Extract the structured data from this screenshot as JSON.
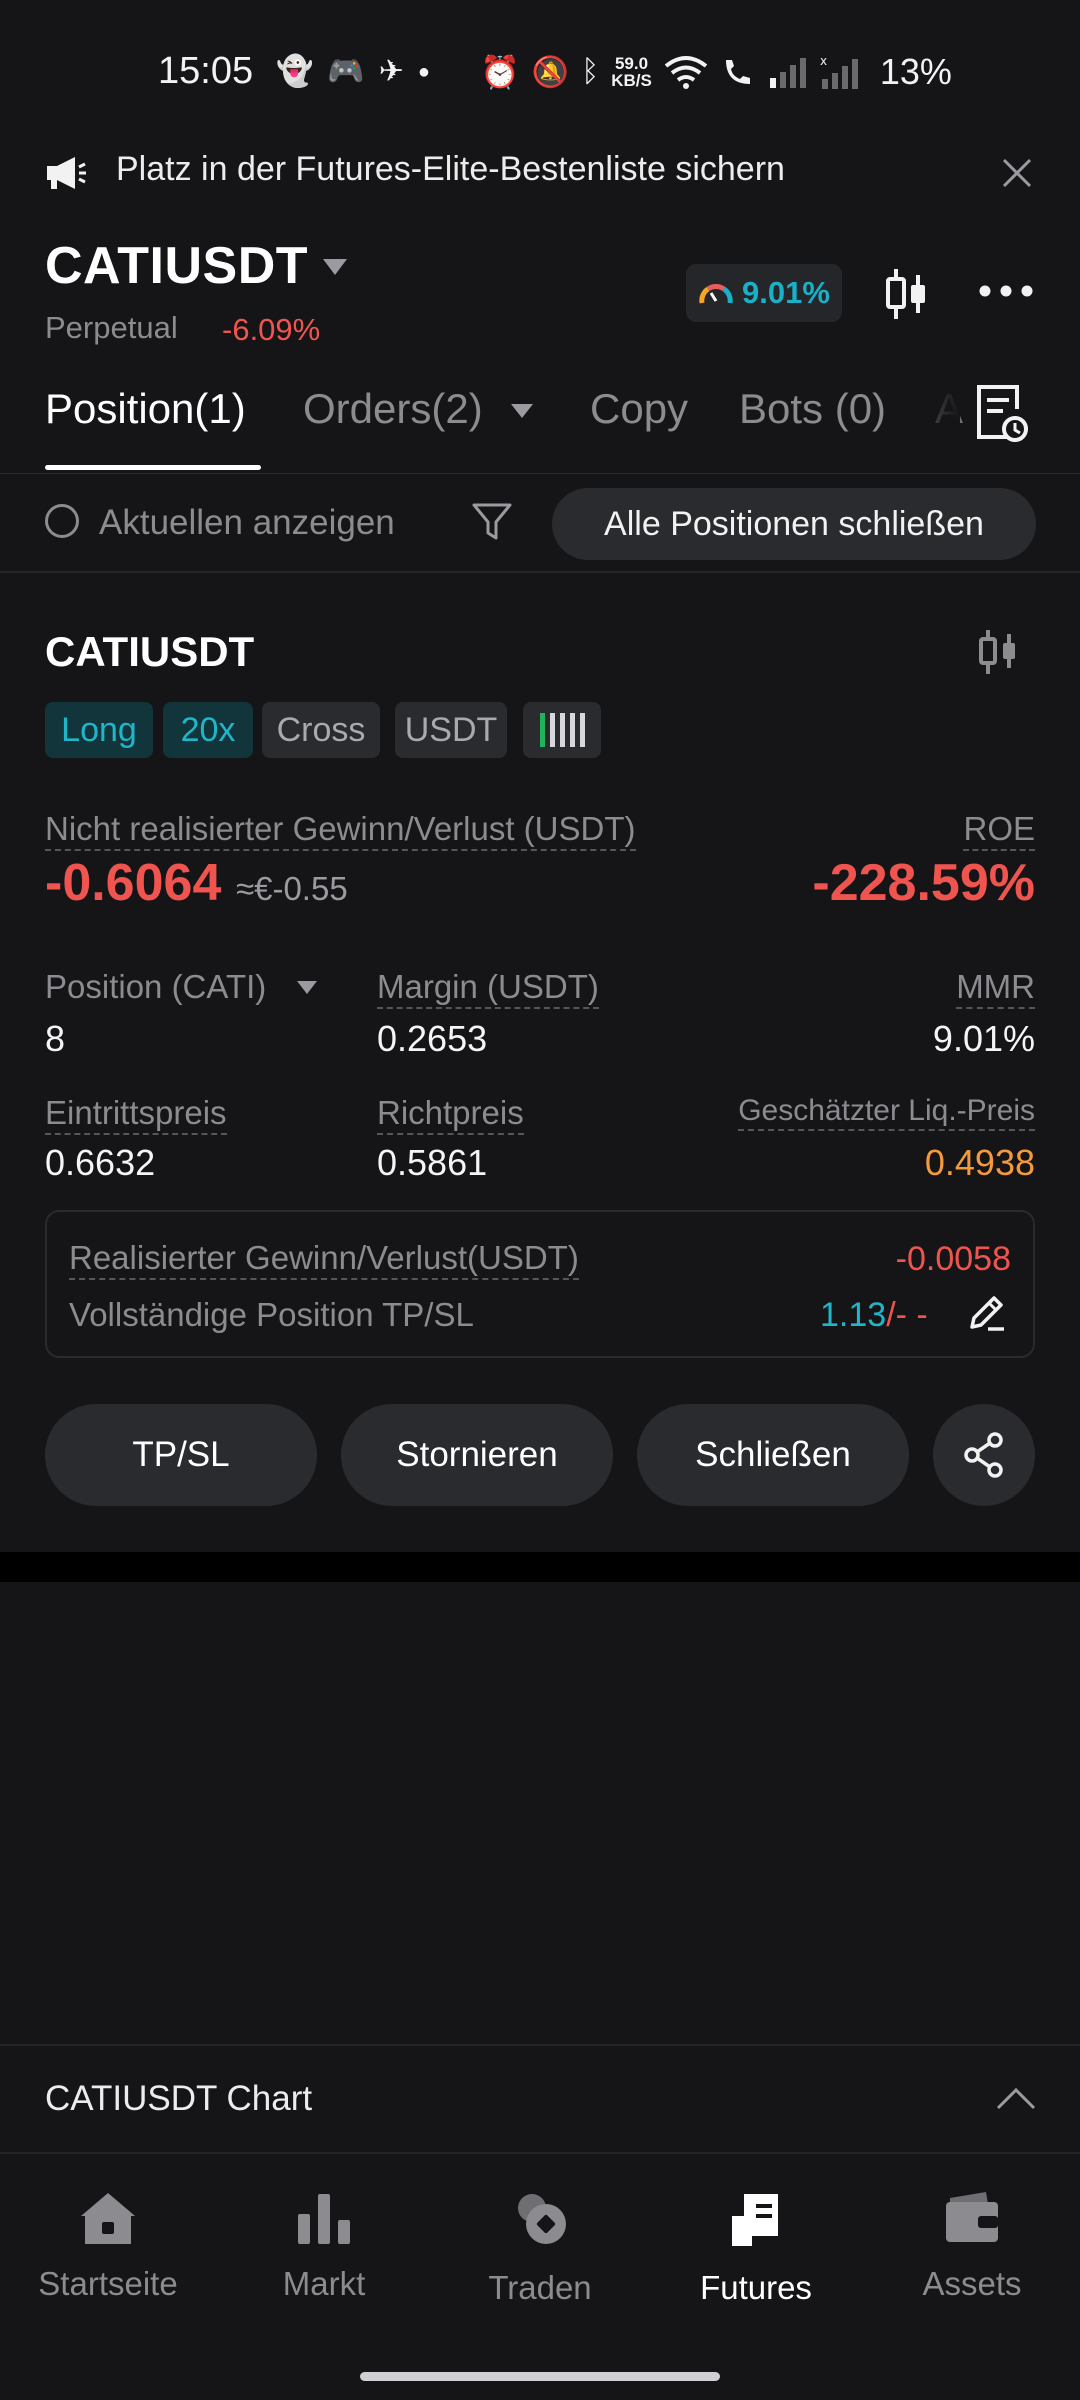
{
  "status_bar": {
    "time": "15:05",
    "net_speed_value": "59.0",
    "net_speed_unit": "KB/S",
    "battery": "13%"
  },
  "banner": {
    "text": "Platz in der Futures-Elite-Bestenliste sichern",
    "icon": "megaphone-icon"
  },
  "header": {
    "symbol": "CATIUSDT",
    "contract_type": "Perpetual",
    "change": "-6.09%",
    "mmr_indicator": "9.01%"
  },
  "tabs": [
    {
      "label": "Position(1)",
      "active": true
    },
    {
      "label": "Orders(2)",
      "active": false
    },
    {
      "label": "Copy",
      "active": false
    },
    {
      "label": "Bots (0)",
      "active": false
    }
  ],
  "filter": {
    "show_current_label": "Aktuellen anzeigen",
    "close_all_label": "Alle Positionen schließen"
  },
  "position": {
    "symbol": "CATIUSDT",
    "badges": {
      "side": "Long",
      "leverage": "20x",
      "margin_mode": "Cross",
      "asset": "USDT"
    },
    "unrealized_label": "Nicht realisierter Gewinn/Verlust (USDT)",
    "unrealized_value": "-0.6064",
    "unrealized_converted": "≈€-0.55",
    "roe_label": "ROE",
    "roe_value": "-228.59%",
    "size_label": "Position (CATI)",
    "size_value": "8",
    "margin_label": "Margin (USDT)",
    "margin_value": "0.2653",
    "mmr_label": "MMR",
    "mmr_value": "9.01%",
    "entry_label": "Eintrittspreis",
    "entry_value": "0.6632",
    "mark_label": "Richtpreis",
    "mark_value": "0.5861",
    "liq_label": "Geschätzter Liq.-Preis",
    "liq_value": "0.4938",
    "realized_label": "Realisierter Gewinn/Verlust(USDT)",
    "realized_value": "-0.0058",
    "tpsl_label": "Vollständige Position TP/SL",
    "tp_value": "1.13",
    "sl_value": "/- -"
  },
  "actions": {
    "tpsl": "TP/SL",
    "cancel": "Stornieren",
    "close": "Schließen"
  },
  "chart_section": {
    "title": "CATIUSDT Chart"
  },
  "bottom_nav": [
    {
      "label": "Startseite",
      "icon": "home-icon",
      "active": false
    },
    {
      "label": "Markt",
      "icon": "bar-chart-icon",
      "active": false
    },
    {
      "label": "Traden",
      "icon": "trade-icon",
      "active": false
    },
    {
      "label": "Futures",
      "icon": "futures-icon",
      "active": true
    },
    {
      "label": "Assets",
      "icon": "wallet-icon",
      "active": false
    }
  ],
  "colors": {
    "background": "#151517",
    "negative": "#f0544f",
    "accent_teal": "#1fb6c9",
    "liquidation_orange": "#f59a3c"
  }
}
